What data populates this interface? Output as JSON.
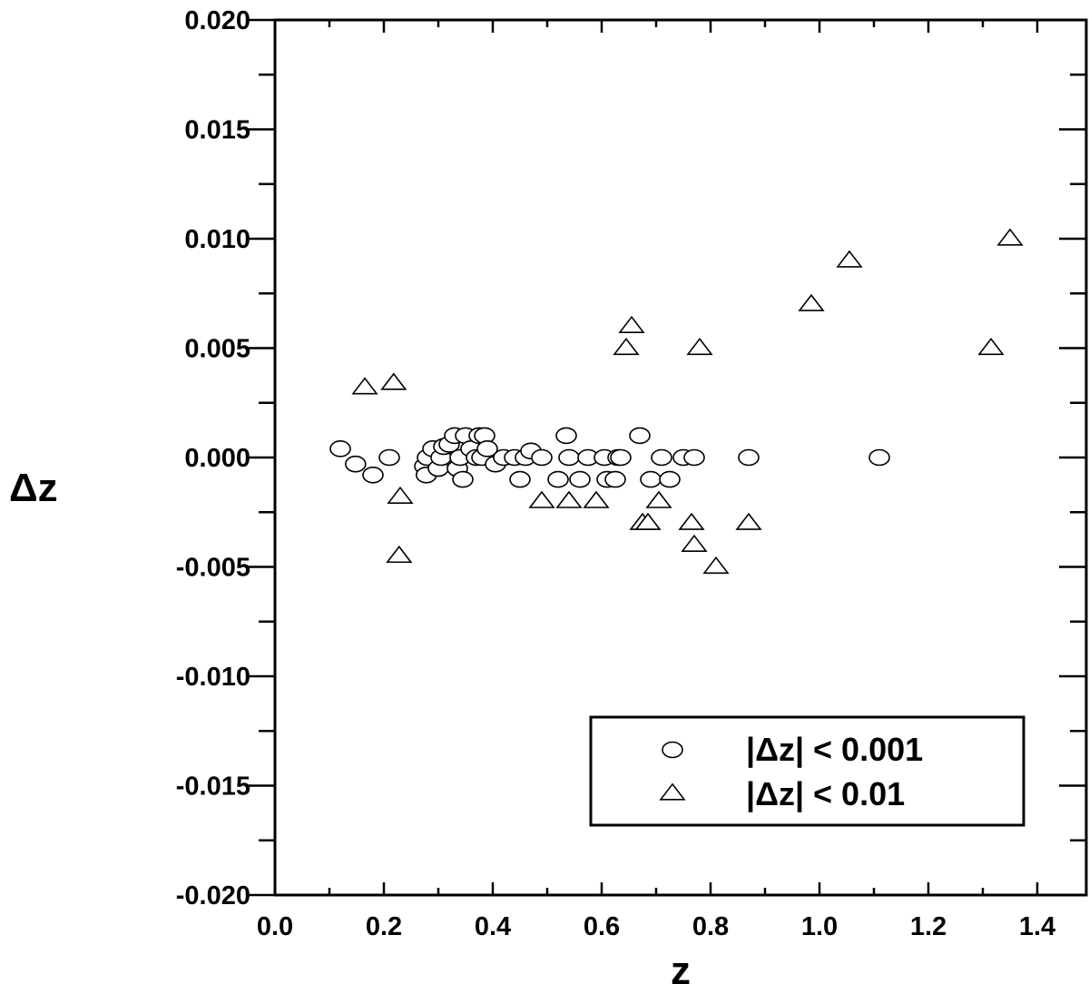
{
  "chart_data": {
    "type": "scatter",
    "xlabel": "z",
    "ylabel": "Δz",
    "xlim": [
      0.0,
      1.45
    ],
    "ylim": [
      -0.02,
      0.02
    ],
    "xticks": [
      "0.0",
      "0.2",
      "0.4",
      "0.6",
      "0.8",
      "1.0",
      "1.2",
      "1.4"
    ],
    "yticks": [
      "0.020",
      "0.015",
      "0.010",
      "0.005",
      "0.000",
      "-0.005",
      "-0.010",
      "-0.015",
      "-0.020"
    ],
    "grid": false,
    "legend_position": "bottom-right",
    "series": [
      {
        "name": "|Δz| < 0.001",
        "marker": "circle",
        "points": [
          [
            0.12,
            0.0004
          ],
          [
            0.148,
            -0.0003
          ],
          [
            0.18,
            -0.0008
          ],
          [
            0.21,
            0.0
          ],
          [
            0.275,
            -0.0004
          ],
          [
            0.278,
            -0.0008
          ],
          [
            0.28,
            0.0
          ],
          [
            0.29,
            0.0004
          ],
          [
            0.3,
            -0.0005
          ],
          [
            0.305,
            0.0
          ],
          [
            0.31,
            0.0005
          ],
          [
            0.32,
            0.0006
          ],
          [
            0.33,
            0.001
          ],
          [
            0.335,
            -0.0005
          ],
          [
            0.34,
            0.0
          ],
          [
            0.345,
            -0.001
          ],
          [
            0.35,
            0.001
          ],
          [
            0.36,
            0.0004
          ],
          [
            0.37,
            0.0
          ],
          [
            0.375,
            0.001
          ],
          [
            0.38,
            0.0
          ],
          [
            0.385,
            0.001
          ],
          [
            0.39,
            0.0004
          ],
          [
            0.405,
            -0.0003
          ],
          [
            0.42,
            0.0
          ],
          [
            0.44,
            0.0
          ],
          [
            0.45,
            -0.001
          ],
          [
            0.46,
            0.0
          ],
          [
            0.47,
            0.0003
          ],
          [
            0.49,
            0.0
          ],
          [
            0.52,
            -0.001
          ],
          [
            0.535,
            0.001
          ],
          [
            0.54,
            0.0
          ],
          [
            0.56,
            -0.001
          ],
          [
            0.575,
            0.0
          ],
          [
            0.605,
            0.0
          ],
          [
            0.61,
            -0.001
          ],
          [
            0.625,
            -0.001
          ],
          [
            0.63,
            0.0
          ],
          [
            0.635,
            0.0
          ],
          [
            0.67,
            0.001
          ],
          [
            0.69,
            -0.001
          ],
          [
            0.71,
            0.0
          ],
          [
            0.725,
            -0.001
          ],
          [
            0.75,
            0.0
          ],
          [
            0.77,
            0.0
          ],
          [
            0.87,
            0.0
          ],
          [
            1.11,
            0.0
          ]
        ]
      },
      {
        "name": "|Δz| < 0.01",
        "marker": "triangle",
        "points": [
          [
            0.165,
            0.0032
          ],
          [
            0.218,
            0.0034
          ],
          [
            0.23,
            -0.0018
          ],
          [
            0.228,
            -0.0045
          ],
          [
            0.49,
            -0.002
          ],
          [
            0.54,
            -0.002
          ],
          [
            0.59,
            -0.002
          ],
          [
            0.645,
            0.005
          ],
          [
            0.655,
            0.006
          ],
          [
            0.675,
            -0.003
          ],
          [
            0.685,
            -0.003
          ],
          [
            0.705,
            -0.002
          ],
          [
            0.765,
            -0.003
          ],
          [
            0.77,
            -0.004
          ],
          [
            0.78,
            0.005
          ],
          [
            0.81,
            -0.005
          ],
          [
            0.87,
            -0.003
          ],
          [
            0.985,
            0.007
          ],
          [
            1.055,
            0.009
          ],
          [
            1.315,
            0.005
          ],
          [
            1.35,
            0.01
          ]
        ]
      }
    ]
  }
}
